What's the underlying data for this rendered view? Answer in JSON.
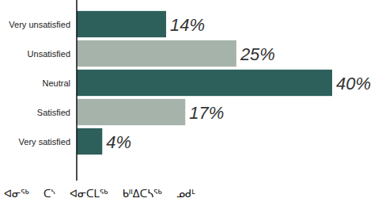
{
  "chart_data": {
    "type": "bar",
    "orientation": "horizontal",
    "title": "ᐊᓂᖅ ᑕᔅ ᐊᓂᑕᒪᖅ ᑲᐦᐃᑕᓴᖅ ᓄᑯᒻ",
    "categories": [
      "Very unsatisfied",
      "Unsatisfied",
      "Neutral",
      "Satisfied",
      "Very satisfied"
    ],
    "values": [
      14,
      25,
      40,
      17,
      4
    ],
    "value_labels": [
      "14%",
      "25%",
      "40%",
      "17%",
      "4%"
    ],
    "colors": [
      "#2d5f5b",
      "#a5b3ab",
      "#2d5f5b",
      "#a5b3ab",
      "#2d5f5b"
    ],
    "xlim": [
      0,
      40
    ],
    "data_labels": true,
    "tick_labels": "y",
    "grid": false
  }
}
